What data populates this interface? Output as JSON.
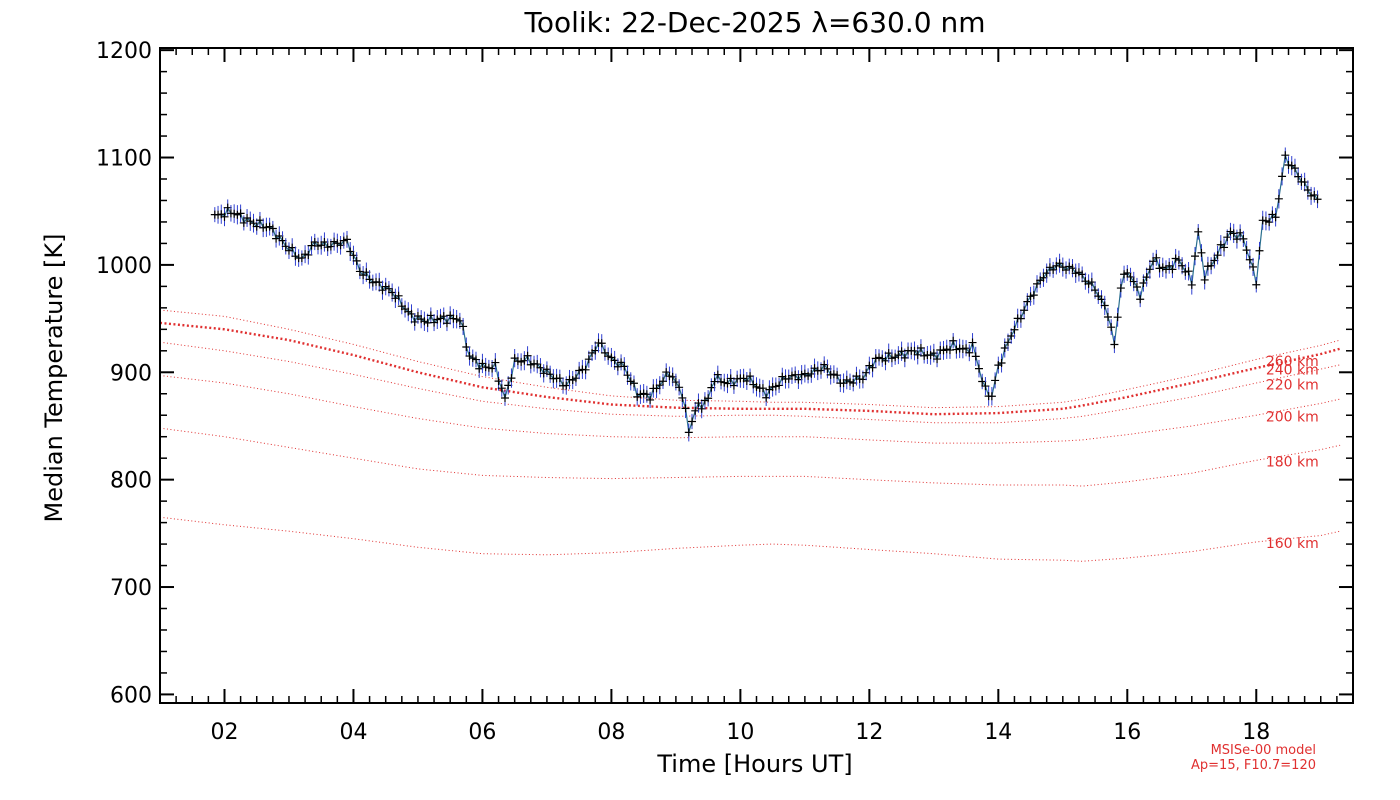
{
  "chart_data": {
    "type": "line",
    "title": "Toolik: 22-Dec-2025 λ=630.0 nm",
    "xlabel": "Time [Hours UT]",
    "ylabel": "Median Temperature [K]",
    "xlim": [
      1.0,
      19.5
    ],
    "ylim": [
      592,
      1202
    ],
    "xticks": [
      2,
      4,
      6,
      8,
      10,
      12,
      14,
      16,
      18
    ],
    "xtick_labels": [
      "02",
      "04",
      "06",
      "08",
      "10",
      "12",
      "14",
      "16",
      "18"
    ],
    "yticks": [
      600,
      700,
      800,
      900,
      1000,
      1100,
      1200
    ],
    "ytick_labels": [
      "600",
      "700",
      "800",
      "900",
      "1000",
      "1100",
      "1200"
    ],
    "measured": {
      "name": "Median Temperature",
      "line_color": "#2a6f8f",
      "marker_color": "#000000",
      "errorbar_color": "#2f3fd0",
      "anchors_x": [
        1.85,
        2.1,
        2.4,
        2.7,
        3.0,
        3.2,
        3.4,
        3.6,
        3.9,
        4.1,
        4.3,
        4.6,
        4.9,
        5.1,
        5.4,
        5.65,
        5.8,
        6.0,
        6.2,
        6.35,
        6.5,
        6.7,
        7.0,
        7.3,
        7.6,
        7.8,
        8.0,
        8.2,
        8.4,
        8.6,
        8.9,
        9.1,
        9.2,
        9.3,
        9.5,
        9.6,
        9.8,
        10.1,
        10.4,
        10.7,
        11.0,
        11.3,
        11.6,
        11.9,
        12.1,
        12.4,
        12.7,
        13.0,
        13.3,
        13.5,
        13.6,
        13.8,
        13.9,
        14.0,
        14.2,
        14.5,
        14.7,
        14.9,
        15.2,
        15.5,
        15.7,
        15.8,
        15.9,
        16.0,
        16.2,
        16.4,
        16.6,
        16.8,
        17.0,
        17.1,
        17.2,
        17.4,
        17.6,
        17.8,
        18.0,
        18.1,
        18.3,
        18.45,
        18.6,
        18.8,
        18.95
      ],
      "anchors_y": [
        1045,
        1050,
        1040,
        1035,
        1015,
        1005,
        1020,
        1018,
        1022,
        995,
        985,
        975,
        952,
        948,
        950,
        950,
        915,
        905,
        905,
        875,
        910,
        912,
        900,
        888,
        905,
        928,
        912,
        905,
        880,
        878,
        900,
        880,
        845,
        865,
        875,
        895,
        890,
        895,
        880,
        895,
        897,
        905,
        890,
        895,
        912,
        915,
        920,
        915,
        925,
        920,
        925,
        883,
        878,
        905,
        935,
        970,
        990,
        1000,
        995,
        978,
        955,
        925,
        980,
        995,
        972,
        1005,
        995,
        1005,
        985,
        1030,
        990,
        1010,
        1030,
        1025,
        985,
        1040,
        1045,
        1100,
        1088,
        1070,
        1060
      ],
      "sample_step_hours": 0.05
    },
    "model_curves": {
      "source": "MSISe-00 model",
      "params": "Ap=15, F10.7=120",
      "color": "#e03030",
      "x": [
        1.0,
        2.0,
        3.0,
        4.0,
        5.0,
        6.0,
        7.0,
        8.0,
        9.0,
        10.0,
        10.5,
        11.0,
        12.0,
        13.0,
        14.0,
        15.0,
        15.3,
        16.0,
        17.0,
        18.0,
        19.0,
        19.3
      ],
      "series": [
        {
          "label": "160 km",
          "y": [
            765,
            758,
            752,
            745,
            737,
            731,
            730,
            732,
            736,
            739,
            740,
            739,
            735,
            731,
            726,
            725,
            724,
            727,
            733,
            742,
            748,
            752
          ]
        },
        {
          "label": "180 km",
          "y": [
            848,
            840,
            830,
            820,
            810,
            804,
            802,
            801,
            802,
            803,
            803,
            803,
            800,
            797,
            795,
            795,
            794,
            798,
            806,
            818,
            828,
            832
          ]
        },
        {
          "label": "200 km",
          "y": [
            897,
            890,
            880,
            868,
            857,
            848,
            843,
            840,
            839,
            840,
            840,
            840,
            837,
            834,
            834,
            836,
            837,
            842,
            850,
            860,
            871,
            875
          ]
        },
        {
          "label": "220 km",
          "y": [
            928,
            920,
            910,
            898,
            885,
            873,
            866,
            861,
            859,
            860,
            860,
            859,
            856,
            853,
            853,
            857,
            859,
            866,
            877,
            890,
            903,
            907
          ]
        },
        {
          "label": "240 km",
          "y": [
            946,
            940,
            930,
            916,
            900,
            886,
            877,
            870,
            867,
            866,
            866,
            866,
            864,
            861,
            862,
            866,
            869,
            877,
            890,
            904,
            917,
            922
          ]
        },
        {
          "label": "260 km",
          "y": [
            958,
            952,
            940,
            926,
            910,
            896,
            886,
            878,
            874,
            873,
            872,
            872,
            870,
            867,
            868,
            872,
            875,
            884,
            897,
            912,
            925,
            930
          ]
        }
      ]
    }
  }
}
